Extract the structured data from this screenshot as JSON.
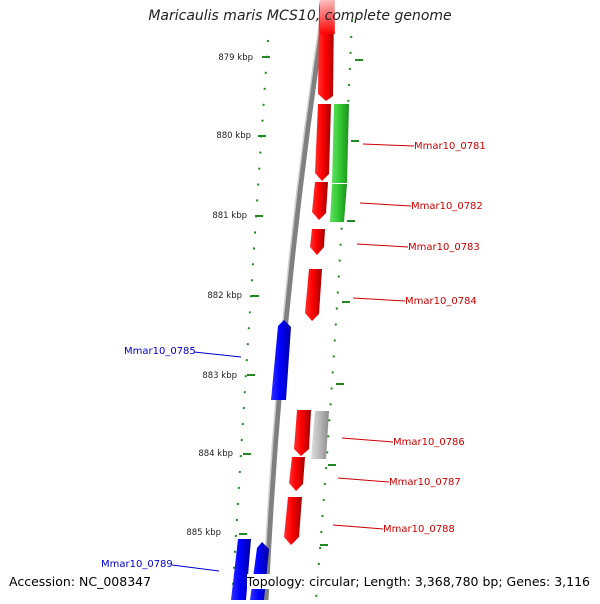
{
  "title": "Maricaulis maris MCS10, complete genome",
  "accession": "Accession: NC_008347",
  "summary": "Topology: circular; Length: 3,368,780 bp; Genes: 3,116",
  "colors": {
    "forward_gene": "#ff0000",
    "reverse_gene": "#0000ff",
    "rna_gene": "#33cc33",
    "other_feature": "#bbbbbb",
    "tick_marks": "#228822",
    "backbone": "#808080"
  },
  "ticks": [
    {
      "label": "879 kbp"
    },
    {
      "label": "880 kbp"
    },
    {
      "label": "881 kbp"
    },
    {
      "label": "882 kbp"
    },
    {
      "label": "883 kbp"
    },
    {
      "label": "884 kbp"
    },
    {
      "label": "885 kbp"
    }
  ],
  "genes": [
    {
      "label": "Mmar10_0781"
    },
    {
      "label": "Mmar10_0782"
    },
    {
      "label": "Mmar10_0783"
    },
    {
      "label": "Mmar10_0784"
    },
    {
      "label": "Mmar10_0785"
    },
    {
      "label": "Mmar10_0786"
    },
    {
      "label": "Mmar10_0787"
    },
    {
      "label": "Mmar10_0788"
    },
    {
      "label": "Mmar10_0789"
    }
  ]
}
